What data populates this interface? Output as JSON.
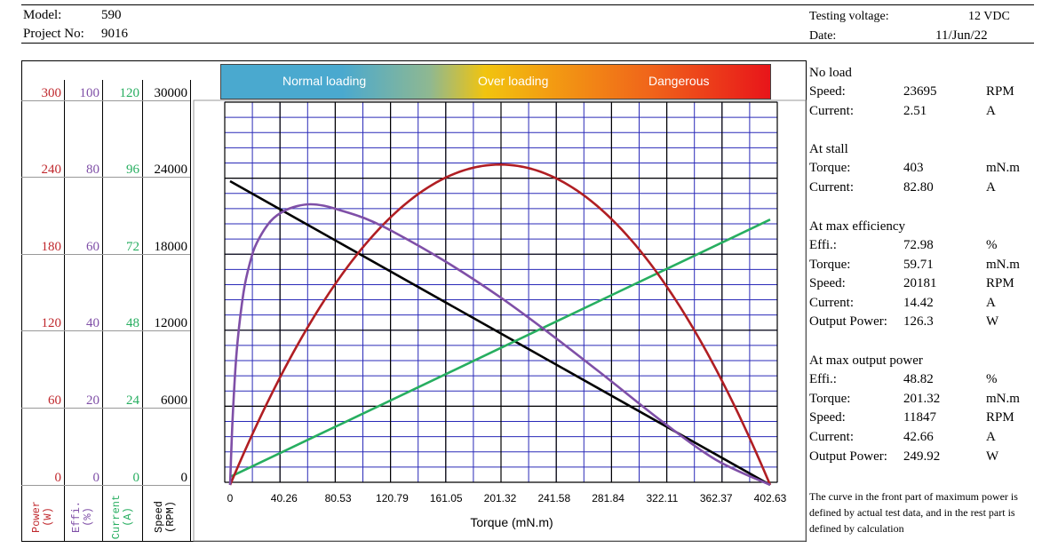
{
  "header": {
    "model_label": "Model:",
    "model_value": "590",
    "project_label": "Project No:",
    "project_value": "9016",
    "voltage_label": "Testing voltage:",
    "voltage_value": "12 VDC",
    "date_label": "Date:",
    "date_value": "11/Jun/22"
  },
  "band": {
    "normal": "Normal loading",
    "over": "Over loading",
    "danger": "Dangerous"
  },
  "axes": {
    "power": {
      "ticks": [
        "300",
        "240",
        "180",
        "120",
        "60",
        "0"
      ],
      "label_line1": "Power",
      "label_line2": "(W)",
      "color": "#c0282d"
    },
    "effi": {
      "ticks": [
        "100",
        "80",
        "60",
        "40",
        "20",
        "0"
      ],
      "label_line1": "Effi.",
      "label_line2": "(%)",
      "color": "#7f4fa7"
    },
    "current": {
      "ticks": [
        "120",
        "96",
        "72",
        "48",
        "24",
        "0"
      ],
      "label_line1": "Current",
      "label_line2": "(A)",
      "color": "#27ae60"
    },
    "speed": {
      "ticks": [
        "30000",
        "24000",
        "18000",
        "12000",
        "6000",
        "0"
      ],
      "label_line1": "Speed",
      "label_line2": "(RPM)",
      "color": "#000000"
    }
  },
  "chart_data": {
    "type": "line",
    "xlabel": "Torque (mN.m)",
    "x_ticks": [
      "0",
      "40.26",
      "80.53",
      "120.79",
      "161.05",
      "201.32",
      "241.58",
      "281.84",
      "322.11",
      "362.37",
      "402.63"
    ],
    "xlim": [
      0,
      402.63
    ],
    "series": [
      {
        "name": "Speed",
        "axis": "speed",
        "color": "#000000",
        "unit": "RPM",
        "points": [
          [
            0,
            23695
          ],
          [
            201.32,
            11847
          ],
          [
            402.63,
            0
          ]
        ]
      },
      {
        "name": "Current",
        "axis": "current",
        "color": "#27ae60",
        "unit": "A",
        "points": [
          [
            0,
            2.51
          ],
          [
            59.71,
            14.42
          ],
          [
            201.32,
            42.66
          ],
          [
            402.63,
            82.8
          ]
        ]
      },
      {
        "name": "Power",
        "axis": "power",
        "color": "#b01e23",
        "unit": "W",
        "points": [
          [
            0,
            0
          ],
          [
            40.26,
            88
          ],
          [
            80.53,
            158
          ],
          [
            120.79,
            208
          ],
          [
            161.05,
            239
          ],
          [
            201.32,
            249.92
          ],
          [
            241.58,
            239
          ],
          [
            281.84,
            208
          ],
          [
            322.11,
            158
          ],
          [
            362.37,
            88
          ],
          [
            402.63,
            0
          ]
        ]
      },
      {
        "name": "Effi.",
        "axis": "effi",
        "color": "#7f4fa7",
        "unit": "%",
        "points": [
          [
            0,
            0
          ],
          [
            2,
            18
          ],
          [
            5,
            35
          ],
          [
            10,
            50
          ],
          [
            15,
            58
          ],
          [
            20,
            63
          ],
          [
            30,
            68.5
          ],
          [
            40,
            71.2
          ],
          [
            50,
            72.5
          ],
          [
            59.71,
            72.98
          ],
          [
            70,
            72.6
          ],
          [
            80.53,
            71.6
          ],
          [
            100,
            69.4
          ],
          [
            120.79,
            66
          ],
          [
            161.05,
            58
          ],
          [
            201.32,
            48.82
          ],
          [
            241.58,
            38.5
          ],
          [
            281.84,
            27.6
          ],
          [
            322.11,
            16.5
          ],
          [
            362.37,
            6.5
          ],
          [
            402.63,
            0
          ]
        ]
      }
    ]
  },
  "summary": {
    "no_load": {
      "title": "No load",
      "rows": [
        [
          "Speed:",
          "23695",
          "RPM"
        ],
        [
          "Current:",
          "2.51",
          "A"
        ]
      ]
    },
    "stall": {
      "title": "At stall",
      "rows": [
        [
          "Torque:",
          "403",
          "mN.m"
        ],
        [
          "Current:",
          "82.80",
          "A"
        ]
      ]
    },
    "max_eff": {
      "title": "At max efficiency",
      "rows": [
        [
          "Effi.:",
          "72.98",
          "%"
        ],
        [
          "Torque:",
          "59.71",
          "mN.m"
        ],
        [
          "Speed:",
          "20181",
          "RPM"
        ],
        [
          "Current:",
          "14.42",
          "A"
        ],
        [
          "Output Power:",
          "126.3",
          "W"
        ]
      ]
    },
    "max_power": {
      "title": "At max output power",
      "rows": [
        [
          "Effi.:",
          "48.82",
          "%"
        ],
        [
          "Torque:",
          "201.32",
          "mN.m"
        ],
        [
          "Speed:",
          "11847",
          "RPM"
        ],
        [
          "Current:",
          "42.66",
          "A"
        ],
        [
          "Output Power:",
          "249.92",
          "W"
        ]
      ]
    }
  },
  "note": "The curve in the front part of maximum power is defined by actual test data, and in the rest part is defined by calculation"
}
